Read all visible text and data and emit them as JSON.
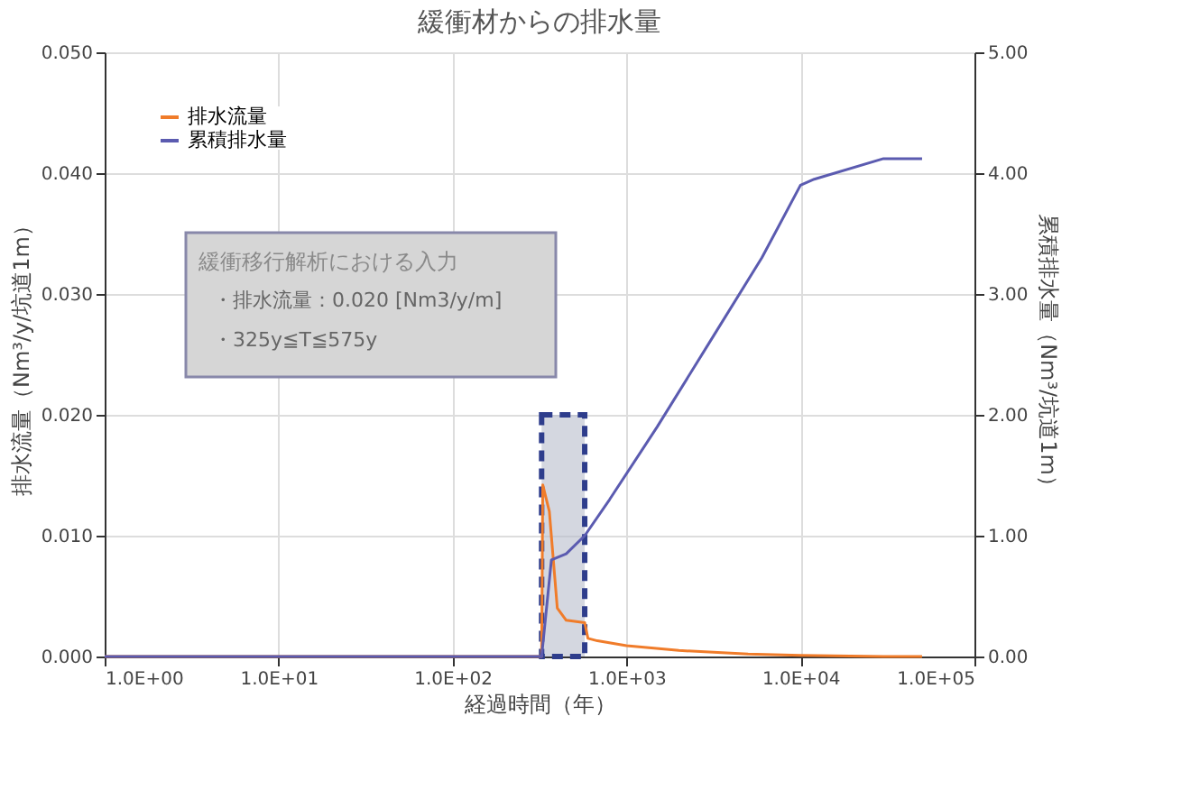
{
  "chart_data": {
    "type": "line",
    "title": "緩衝材からの排水量",
    "xlabel": "経過時間（年）",
    "ylabel": "排水流量（Nm³/y/坑道1m）",
    "y2label": "累積排水量（Nm³/坑道1m）",
    "log": "x",
    "xlim": [
      1,
      100000
    ],
    "xticks": [
      {
        "value": 1,
        "label": "1.0E+00"
      },
      {
        "value": 10,
        "label": "1.0E+01"
      },
      {
        "value": 100,
        "label": "1.0E+02"
      },
      {
        "value": 1000,
        "label": "1.0E+03"
      },
      {
        "value": 10000,
        "label": "1.0E+04"
      },
      {
        "value": 100000,
        "label": "1.0E+05"
      }
    ],
    "ylim": [
      0,
      0.05
    ],
    "yticks": [
      {
        "value": 0,
        "label": "0.000"
      },
      {
        "value": 0.01,
        "label": "0.010"
      },
      {
        "value": 0.02,
        "label": "0.020"
      },
      {
        "value": 0.03,
        "label": "0.030"
      },
      {
        "value": 0.04,
        "label": "0.040"
      },
      {
        "value": 0.05,
        "label": "0.050"
      }
    ],
    "y2lim": [
      0,
      5
    ],
    "y2ticks": [
      {
        "value": 0,
        "label": "0.00"
      },
      {
        "value": 1,
        "label": "1.00"
      },
      {
        "value": 2,
        "label": "2.00"
      },
      {
        "value": 3,
        "label": "3.00"
      },
      {
        "value": 4,
        "label": "4.00"
      },
      {
        "value": 5,
        "label": "5.00"
      }
    ],
    "grid": true,
    "legend": "top left",
    "marker": "none",
    "series": [
      {
        "type": "area",
        "color": "#2e3d8c",
        "line_style": "dashed",
        "x": [
          325,
          575
        ],
        "values": [
          0.02,
          0.02
        ]
      },
      {
        "name": "排水流量",
        "color": "#f07c2a",
        "line_style": "solid",
        "x": [
          1,
          325,
          330,
          360,
          400,
          450,
          575,
          600,
          680,
          1000,
          2000,
          5000,
          10000,
          30000,
          50000
        ],
        "values": [
          0,
          0,
          0.0142,
          0.012,
          0.004,
          0.003,
          0.0028,
          0.0015,
          0.0013,
          0.0009,
          0.0005,
          0.0002,
          0.0001,
          0,
          0
        ]
      },
      {
        "name": "累積排水量",
        "color": "#5b5bb0",
        "line_style": "solid",
        "axis": "y2",
        "x": [
          1,
          325,
          370,
          450,
          575,
          800,
          1500,
          3000,
          6000,
          10000,
          12000,
          30000,
          50000
        ],
        "values": [
          0,
          0,
          0.8,
          0.85,
          1.0,
          1.3,
          1.9,
          2.6,
          3.3,
          3.9,
          3.95,
          4.12,
          4.12
        ]
      }
    ],
    "annotations": [
      "緩衝移行解析における入力",
      "・排水流量：0.020 [Nm3/y/m]",
      "・325y≦T≦575y"
    ]
  }
}
